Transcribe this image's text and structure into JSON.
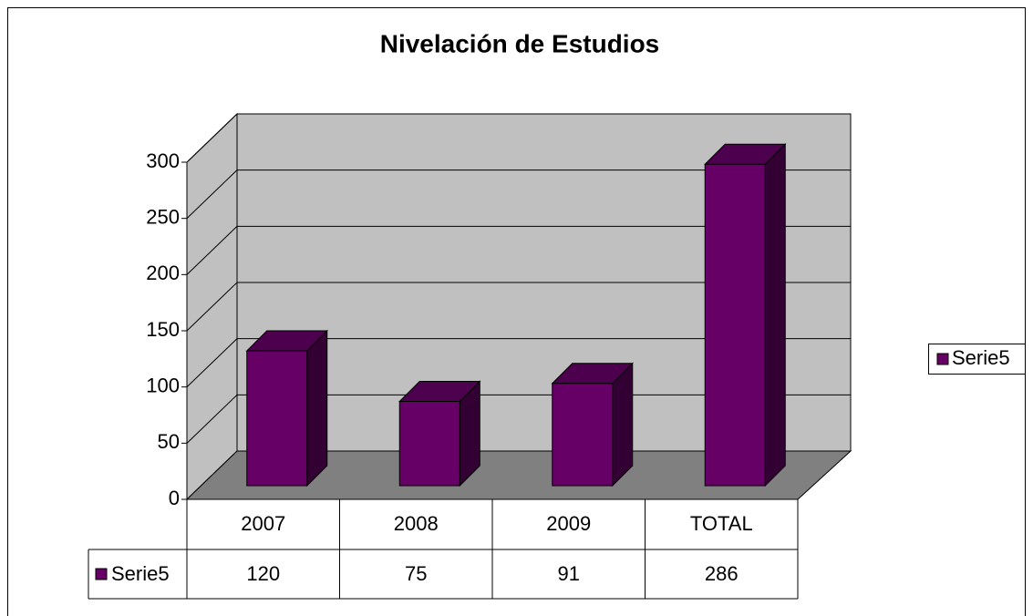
{
  "chart_data": {
    "type": "bar",
    "title": "Nivelación de Estudios",
    "categories": [
      "2007",
      "2008",
      "2009",
      "TOTAL"
    ],
    "series": [
      {
        "name": "Serie5",
        "color": "#660066",
        "values": [
          120,
          75,
          91,
          286
        ]
      }
    ],
    "ylim": [
      0,
      300
    ],
    "yticks": [
      0,
      50,
      100,
      150,
      200,
      250,
      300
    ],
    "grid": true,
    "legend": "right",
    "data_table": true
  }
}
